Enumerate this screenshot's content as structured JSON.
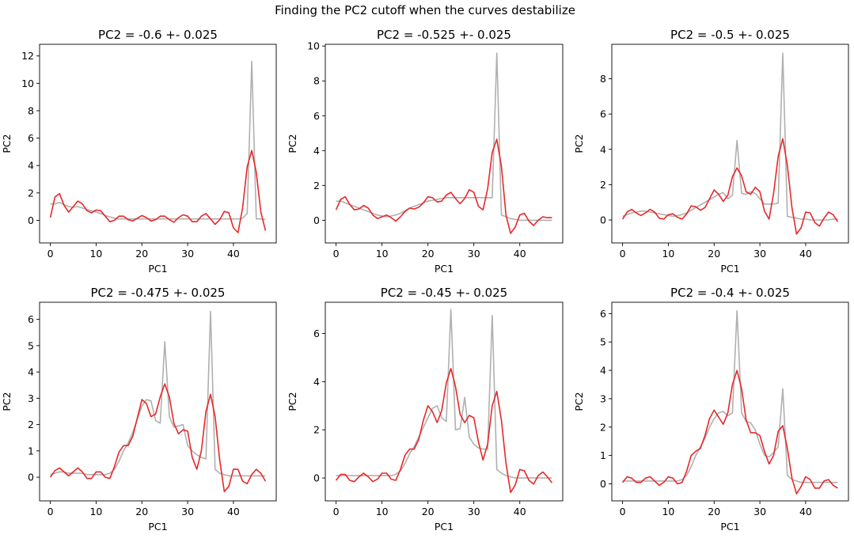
{
  "figure": {
    "title": "Finding the PC2 cutoff when the curves destabilize"
  },
  "colors": {
    "smooth": "#e8282a",
    "raw": "#b0b0b0"
  },
  "chart_data": [
    {
      "type": "line",
      "title": "PC2 = -0.6 +- 0.025",
      "xlabel": "PC1",
      "ylabel": "PC2",
      "xlim": [
        -2.35,
        49.35
      ],
      "ylim": [
        -1.65,
        12.85
      ],
      "xticks": [
        0,
        10,
        20,
        30,
        40
      ],
      "yticks": [
        0,
        2,
        4,
        6,
        8,
        10,
        12
      ],
      "series": [
        {
          "values": [
            1.2,
            1.2,
            1.3,
            1.15,
            1.0,
            0.95,
            1.0,
            0.9,
            0.8,
            0.7,
            0.6,
            0.5,
            0.35,
            0.25,
            0.15,
            0.1,
            0.1,
            0.1,
            0.1,
            0.1,
            0.1,
            0.1,
            0.1,
            0.1,
            0.1,
            0.1,
            0.1,
            0.1,
            0.1,
            0.1,
            0.1,
            0.1,
            0.1,
            0.1,
            0.1,
            0.1,
            0.1,
            0.1,
            0.1,
            0.1,
            0.1,
            0.1,
            0.15,
            0.5,
            11.6,
            0.1,
            0.1,
            0.05
          ]
        },
        {
          "values": [
            0.2,
            1.7,
            1.95,
            1.1,
            0.6,
            1.0,
            1.4,
            1.2,
            0.7,
            0.55,
            0.75,
            0.7,
            0.3,
            -0.1,
            0.0,
            0.3,
            0.3,
            0.05,
            -0.05,
            0.15,
            0.35,
            0.2,
            -0.05,
            0.05,
            0.3,
            0.3,
            0.05,
            -0.15,
            0.2,
            0.4,
            0.3,
            -0.1,
            -0.1,
            0.3,
            0.5,
            0.1,
            -0.3,
            0.05,
            0.65,
            0.55,
            -0.55,
            -0.9,
            0.9,
            3.9,
            5.1,
            3.5,
            0.6,
            -0.75
          ]
        }
      ]
    },
    {
      "type": "line",
      "title": "PC2 = -0.525 +- 0.025",
      "xlabel": "PC1",
      "ylabel": "PC2",
      "xlim": [
        -2.35,
        49.35
      ],
      "ylim": [
        -1.3,
        10.1
      ],
      "xticks": [
        0,
        10,
        20,
        30,
        40
      ],
      "yticks": [
        0,
        2,
        4,
        6,
        8,
        10
      ],
      "series": [
        {
          "values": [
            1.1,
            1.1,
            1.0,
            0.9,
            0.8,
            0.7,
            0.6,
            0.5,
            0.4,
            0.3,
            0.25,
            0.2,
            0.25,
            0.3,
            0.4,
            0.55,
            0.7,
            0.8,
            0.9,
            1.0,
            1.1,
            1.15,
            1.2,
            1.25,
            1.3,
            1.3,
            1.3,
            1.3,
            1.3,
            1.3,
            1.3,
            1.3,
            1.3,
            1.3,
            1.3,
            9.6,
            0.3,
            0.2,
            0.1,
            0.05,
            0.0,
            0.0,
            0.0,
            0.0,
            0.0,
            0.0,
            0.0,
            0.0
          ]
        },
        {
          "values": [
            0.6,
            1.2,
            1.35,
            0.9,
            0.6,
            0.65,
            0.85,
            0.7,
            0.3,
            0.1,
            0.2,
            0.3,
            0.15,
            -0.05,
            0.2,
            0.5,
            0.7,
            0.65,
            0.75,
            1.0,
            1.35,
            1.3,
            1.05,
            1.1,
            1.45,
            1.6,
            1.25,
            0.95,
            1.25,
            1.75,
            1.6,
            0.8,
            0.6,
            1.8,
            3.9,
            4.65,
            3.1,
            0.3,
            -0.75,
            -0.4,
            0.3,
            0.4,
            -0.05,
            -0.3,
            0.0,
            0.2,
            0.15,
            0.15
          ]
        }
      ]
    },
    {
      "type": "line",
      "title": "PC2 = -0.5 +- 0.025",
      "xlabel": "PC1",
      "ylabel": "PC2",
      "xlim": [
        -2.35,
        49.35
      ],
      "ylim": [
        -1.3,
        9.95
      ],
      "xticks": [
        0,
        10,
        20,
        30,
        40
      ],
      "yticks": [
        0,
        2,
        4,
        6,
        8
      ],
      "series": [
        {
          "values": [
            0.2,
            0.3,
            0.4,
            0.45,
            0.5,
            0.5,
            0.45,
            0.4,
            0.35,
            0.3,
            0.25,
            0.2,
            0.25,
            0.3,
            0.4,
            0.55,
            0.7,
            0.85,
            1.0,
            1.15,
            1.3,
            1.45,
            1.55,
            1.2,
            1.4,
            4.5,
            1.5,
            1.45,
            1.6,
            1.5,
            1.2,
            0.9,
            0.9,
            0.9,
            0.95,
            9.45,
            0.2,
            0.15,
            0.1,
            0.05,
            0.05,
            0.0,
            0.0,
            0.0,
            0.0,
            0.0,
            0.05,
            0.05
          ]
        },
        {
          "values": [
            0.05,
            0.45,
            0.6,
            0.4,
            0.25,
            0.4,
            0.6,
            0.45,
            0.1,
            0.05,
            0.3,
            0.35,
            0.15,
            0.05,
            0.35,
            0.8,
            0.75,
            0.55,
            0.7,
            1.2,
            1.7,
            1.45,
            1.05,
            1.4,
            2.45,
            2.95,
            2.5,
            1.6,
            1.45,
            1.85,
            1.6,
            0.5,
            0.05,
            1.5,
            3.6,
            4.6,
            3.1,
            0.7,
            -0.8,
            -0.45,
            0.45,
            0.4,
            -0.15,
            -0.35,
            0.1,
            0.45,
            0.3,
            -0.1
          ]
        }
      ]
    },
    {
      "type": "line",
      "title": "PC2 = -0.475 +- 0.025",
      "xlabel": "PC1",
      "ylabel": "PC2",
      "xlim": [
        -2.35,
        49.35
      ],
      "ylim": [
        -0.9,
        6.65
      ],
      "xticks": [
        0,
        10,
        20,
        30,
        40
      ],
      "yticks": [
        0,
        1,
        2,
        3,
        4,
        5,
        6
      ],
      "series": [
        {
          "values": [
            0.1,
            0.15,
            0.2,
            0.2,
            0.15,
            0.15,
            0.15,
            0.15,
            0.1,
            0.1,
            0.1,
            0.1,
            0.1,
            0.15,
            0.3,
            0.6,
            1.0,
            1.3,
            1.7,
            2.2,
            2.7,
            2.95,
            2.9,
            2.15,
            2.05,
            5.15,
            2.3,
            1.9,
            1.95,
            2.0,
            1.2,
            1.0,
            0.85,
            0.75,
            0.7,
            6.3,
            0.3,
            0.15,
            0.1,
            0.05,
            0.05,
            0.05,
            0.05,
            0.05,
            0.05,
            0.05,
            0.05,
            0.05
          ]
        },
        {
          "values": [
            0.0,
            0.25,
            0.35,
            0.2,
            0.05,
            0.2,
            0.35,
            0.2,
            -0.05,
            -0.05,
            0.2,
            0.2,
            0.0,
            -0.05,
            0.4,
            0.95,
            1.2,
            1.2,
            1.55,
            2.25,
            2.95,
            2.8,
            2.3,
            2.4,
            3.05,
            3.55,
            3.05,
            2.05,
            1.65,
            1.8,
            1.75,
            0.75,
            0.3,
            1.0,
            2.5,
            3.15,
            2.3,
            0.65,
            -0.55,
            -0.35,
            0.3,
            0.3,
            -0.15,
            -0.25,
            0.1,
            0.3,
            0.15,
            -0.15
          ]
        }
      ]
    },
    {
      "type": "line",
      "title": "PC2 = -0.45 +- 0.025",
      "xlabel": "PC1",
      "ylabel": "PC2",
      "xlim": [
        -2.35,
        49.35
      ],
      "ylim": [
        -0.95,
        7.3
      ],
      "xticks": [
        0,
        10,
        20,
        30,
        40
      ],
      "yticks": [
        0,
        2,
        4,
        6
      ],
      "series": [
        {
          "values": [
            0.1,
            0.1,
            0.1,
            0.1,
            0.1,
            0.1,
            0.1,
            0.1,
            0.1,
            0.1,
            0.1,
            0.1,
            0.1,
            0.15,
            0.3,
            0.6,
            1.0,
            1.3,
            1.7,
            2.1,
            2.5,
            2.9,
            3.0,
            2.5,
            2.35,
            7.0,
            2.0,
            2.05,
            3.35,
            1.7,
            1.4,
            1.25,
            1.2,
            1.2,
            6.75,
            0.35,
            0.2,
            0.1,
            0.05,
            0.0,
            0.0,
            0.0,
            0.0,
            0.0,
            0.0,
            0.0,
            0.0,
            0.0
          ]
        },
        {
          "values": [
            -0.1,
            0.15,
            0.15,
            -0.1,
            -0.15,
            0.05,
            0.2,
            0.05,
            -0.15,
            -0.05,
            0.2,
            0.2,
            -0.05,
            -0.1,
            0.35,
            0.95,
            1.2,
            1.2,
            1.6,
            2.4,
            3.0,
            2.75,
            2.3,
            2.8,
            3.95,
            4.55,
            3.8,
            2.65,
            2.3,
            2.6,
            2.5,
            1.5,
            0.75,
            1.4,
            3.0,
            3.6,
            2.4,
            0.6,
            -0.6,
            -0.3,
            0.35,
            0.3,
            -0.1,
            -0.25,
            0.1,
            0.25,
            0.05,
            -0.2
          ]
        }
      ]
    },
    {
      "type": "line",
      "title": "PC2 = -0.4 +- 0.025",
      "xlabel": "PC1",
      "ylabel": "PC2",
      "xlim": [
        -2.35,
        49.35
      ],
      "ylim": [
        -0.6,
        6.4
      ],
      "xticks": [
        0,
        10,
        20,
        30,
        40
      ],
      "yticks": [
        0,
        1,
        2,
        3,
        4,
        5,
        6
      ],
      "series": [
        {
          "values": [
            0.1,
            0.1,
            0.1,
            0.1,
            0.1,
            0.1,
            0.1,
            0.1,
            0.1,
            0.1,
            0.1,
            0.1,
            0.1,
            0.15,
            0.3,
            0.6,
            1.0,
            1.3,
            1.6,
            2.0,
            2.3,
            2.5,
            2.55,
            2.4,
            2.5,
            6.1,
            2.5,
            2.2,
            2.15,
            1.9,
            1.4,
            1.0,
            0.95,
            1.1,
            1.3,
            3.35,
            0.3,
            0.15,
            0.1,
            0.05,
            0.05,
            0.05,
            0.05,
            0.05,
            0.05,
            0.05,
            0.05,
            0.05
          ]
        },
        {
          "values": [
            0.05,
            0.25,
            0.2,
            0.05,
            0.05,
            0.2,
            0.25,
            0.1,
            -0.05,
            0.05,
            0.25,
            0.2,
            0.0,
            0.05,
            0.45,
            1.0,
            1.15,
            1.25,
            1.7,
            2.3,
            2.6,
            2.35,
            2.1,
            2.5,
            3.5,
            4.0,
            3.35,
            2.25,
            1.8,
            1.8,
            1.7,
            1.15,
            0.7,
            1.0,
            1.85,
            2.05,
            1.25,
            0.2,
            -0.35,
            -0.1,
            0.25,
            0.15,
            -0.15,
            -0.15,
            0.1,
            0.15,
            -0.05,
            -0.15
          ]
        }
      ]
    }
  ]
}
